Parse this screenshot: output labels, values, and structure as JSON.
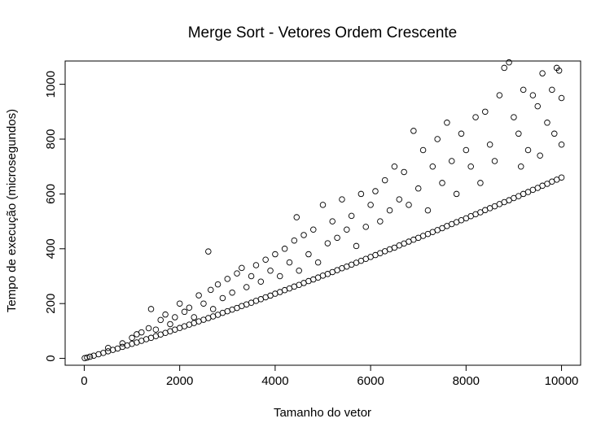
{
  "chart_data": {
    "type": "scatter",
    "title": "Merge Sort - Vetores Ordem Crescente",
    "xlabel": "Tamanho do vetor",
    "ylabel": "Tempo de execução (microsegundos)",
    "xlim": [
      -400,
      10400
    ],
    "ylim": [
      -25,
      1085
    ],
    "xticks": [
      0,
      2000,
      4000,
      6000,
      8000,
      10000
    ],
    "xtick_labels": [
      "0",
      "2000",
      "4000",
      "6000",
      "8000",
      "10000"
    ],
    "yticks": [
      0,
      200,
      400,
      600,
      800,
      1000
    ],
    "ytick_labels": [
      "0",
      "200",
      "400",
      "600",
      "800",
      "1000"
    ],
    "grid": false,
    "legend": "none",
    "marker": "open-circle",
    "color": "#000000",
    "series": [
      {
        "points": [
          [
            10,
            1
          ],
          [
            60,
            3
          ],
          [
            120,
            6
          ],
          [
            200,
            10
          ],
          [
            300,
            15
          ],
          [
            400,
            20
          ],
          [
            500,
            26
          ],
          [
            600,
            31
          ],
          [
            700,
            36
          ],
          [
            800,
            42
          ],
          [
            900,
            47
          ],
          [
            1000,
            53
          ],
          [
            1100,
            58
          ],
          [
            1200,
            64
          ],
          [
            1300,
            70
          ],
          [
            1400,
            75
          ],
          [
            1500,
            81
          ],
          [
            1600,
            87
          ],
          [
            1700,
            93
          ],
          [
            1800,
            99
          ],
          [
            1900,
            105
          ],
          [
            2000,
            111
          ],
          [
            2100,
            117
          ],
          [
            2200,
            123
          ],
          [
            2300,
            129
          ],
          [
            2400,
            135
          ],
          [
            2500,
            141
          ],
          [
            2600,
            147
          ],
          [
            2700,
            153
          ],
          [
            2800,
            159
          ],
          [
            2900,
            166
          ],
          [
            3000,
            172
          ],
          [
            3100,
            178
          ],
          [
            3200,
            184
          ],
          [
            3300,
            191
          ],
          [
            3400,
            197
          ],
          [
            3500,
            203
          ],
          [
            3600,
            210
          ],
          [
            3700,
            216
          ],
          [
            3800,
            223
          ],
          [
            3900,
            229
          ],
          [
            4000,
            236
          ],
          [
            4100,
            242
          ],
          [
            4200,
            249
          ],
          [
            4300,
            255
          ],
          [
            4400,
            262
          ],
          [
            4500,
            268
          ],
          [
            4600,
            275
          ],
          [
            4700,
            282
          ],
          [
            4800,
            288
          ],
          [
            4900,
            295
          ],
          [
            5000,
            302
          ],
          [
            5100,
            308
          ],
          [
            5200,
            315
          ],
          [
            5300,
            322
          ],
          [
            5400,
            329
          ],
          [
            5500,
            335
          ],
          [
            5600,
            342
          ],
          [
            5700,
            349
          ],
          [
            5800,
            356
          ],
          [
            5900,
            363
          ],
          [
            6000,
            370
          ],
          [
            6100,
            377
          ],
          [
            6200,
            384
          ],
          [
            6300,
            391
          ],
          [
            6400,
            398
          ],
          [
            6500,
            404
          ],
          [
            6600,
            412
          ],
          [
            6700,
            419
          ],
          [
            6800,
            426
          ],
          [
            6900,
            433
          ],
          [
            7000,
            440
          ],
          [
            7100,
            447
          ],
          [
            7200,
            454
          ],
          [
            7300,
            461
          ],
          [
            7400,
            468
          ],
          [
            7500,
            475
          ],
          [
            7600,
            483
          ],
          [
            7700,
            490
          ],
          [
            7800,
            497
          ],
          [
            7900,
            504
          ],
          [
            8000,
            511
          ],
          [
            8100,
            519
          ],
          [
            8200,
            526
          ],
          [
            8300,
            533
          ],
          [
            8400,
            541
          ],
          [
            8500,
            548
          ],
          [
            8600,
            555
          ],
          [
            8700,
            563
          ],
          [
            8800,
            570
          ],
          [
            8900,
            577
          ],
          [
            9000,
            585
          ],
          [
            9100,
            592
          ],
          [
            9200,
            600
          ],
          [
            9300,
            607
          ],
          [
            9400,
            615
          ],
          [
            9500,
            622
          ],
          [
            9600,
            630
          ],
          [
            9700,
            637
          ],
          [
            9800,
            645
          ],
          [
            9900,
            652
          ],
          [
            10000,
            660
          ],
          [
            500,
            38
          ],
          [
            800,
            55
          ],
          [
            1000,
            75
          ],
          [
            1100,
            88
          ],
          [
            1200,
            95
          ],
          [
            1350,
            110
          ],
          [
            1400,
            180
          ],
          [
            1500,
            105
          ],
          [
            1600,
            140
          ],
          [
            1700,
            160
          ],
          [
            1800,
            125
          ],
          [
            1900,
            150
          ],
          [
            2000,
            200
          ],
          [
            2100,
            170
          ],
          [
            2200,
            185
          ],
          [
            2300,
            150
          ],
          [
            2400,
            230
          ],
          [
            2500,
            200
          ],
          [
            2600,
            390
          ],
          [
            2650,
            250
          ],
          [
            2700,
            180
          ],
          [
            2800,
            270
          ],
          [
            2900,
            220
          ],
          [
            3000,
            290
          ],
          [
            3100,
            240
          ],
          [
            3200,
            310
          ],
          [
            3300,
            330
          ],
          [
            3400,
            260
          ],
          [
            3500,
            300
          ],
          [
            3600,
            340
          ],
          [
            3700,
            280
          ],
          [
            3800,
            360
          ],
          [
            3900,
            320
          ],
          [
            4000,
            380
          ],
          [
            4100,
            300
          ],
          [
            4200,
            400
          ],
          [
            4300,
            350
          ],
          [
            4400,
            430
          ],
          [
            4450,
            515
          ],
          [
            4500,
            320
          ],
          [
            4600,
            450
          ],
          [
            4700,
            380
          ],
          [
            4800,
            470
          ],
          [
            4900,
            350
          ],
          [
            5000,
            560
          ],
          [
            5100,
            420
          ],
          [
            5200,
            500
          ],
          [
            5300,
            440
          ],
          [
            5400,
            580
          ],
          [
            5500,
            470
          ],
          [
            5600,
            520
          ],
          [
            5700,
            410
          ],
          [
            5800,
            600
          ],
          [
            5900,
            480
          ],
          [
            6000,
            560
          ],
          [
            6100,
            610
          ],
          [
            6200,
            500
          ],
          [
            6300,
            650
          ],
          [
            6400,
            540
          ],
          [
            6500,
            700
          ],
          [
            6600,
            580
          ],
          [
            6700,
            680
          ],
          [
            6800,
            560
          ],
          [
            6900,
            830
          ],
          [
            7000,
            620
          ],
          [
            7100,
            760
          ],
          [
            7200,
            540
          ],
          [
            7300,
            700
          ],
          [
            7400,
            800
          ],
          [
            7500,
            640
          ],
          [
            7600,
            860
          ],
          [
            7700,
            720
          ],
          [
            7800,
            600
          ],
          [
            7900,
            820
          ],
          [
            8000,
            760
          ],
          [
            8100,
            700
          ],
          [
            8200,
            880
          ],
          [
            8300,
            640
          ],
          [
            8400,
            900
          ],
          [
            8500,
            780
          ],
          [
            8600,
            720
          ],
          [
            8700,
            960
          ],
          [
            8800,
            1060
          ],
          [
            8900,
            1080
          ],
          [
            9000,
            880
          ],
          [
            9100,
            820
          ],
          [
            9200,
            980
          ],
          [
            9300,
            760
          ],
          [
            9400,
            960
          ],
          [
            9500,
            920
          ],
          [
            9600,
            1040
          ],
          [
            9700,
            860
          ],
          [
            9800,
            980
          ],
          [
            9900,
            1060
          ],
          [
            9950,
            1050
          ],
          [
            10000,
            950
          ],
          [
            10000,
            780
          ],
          [
            9850,
            820
          ],
          [
            9550,
            740
          ],
          [
            9150,
            700
          ]
        ]
      }
    ]
  }
}
